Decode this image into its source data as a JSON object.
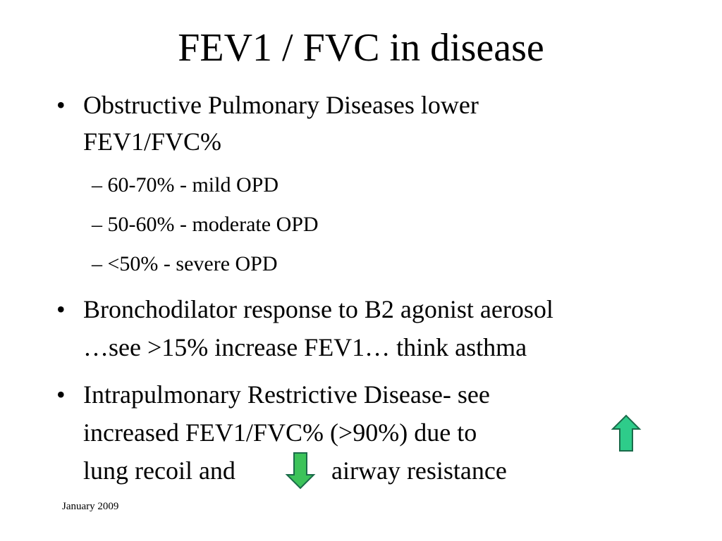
{
  "title": "FEV1 / FVC in disease",
  "bullets": [
    {
      "mark": "•",
      "lines": [
        "Obstructive Pulmonary Diseases lower",
        "FEV1/FVC%"
      ],
      "sub_items": [
        "– 60-70% - mild OPD",
        "– 50-60% - moderate OPD",
        "– <50% - severe OPD"
      ]
    },
    {
      "mark": "•",
      "lines": [
        "Bronchodilator response to B2 agonist aerosol",
        "…see >15% increase FEV1…  think asthma"
      ]
    },
    {
      "mark": "•",
      "lines": [
        "Intrapulmonary Restrictive Disease-  see",
        "increased  FEV1/FVC%  (>90%) due to",
        "lung recoil and",
        "airway resistance"
      ]
    }
  ],
  "icons": {
    "up_arrow": "arrow-up-icon",
    "down_arrow": "arrow-down-icon",
    "arrow_fill": "#2ecc8a",
    "arrow_stroke": "#1a6b4a",
    "down_arrow_fill": "#3cc35a"
  },
  "footer": "January 2009"
}
